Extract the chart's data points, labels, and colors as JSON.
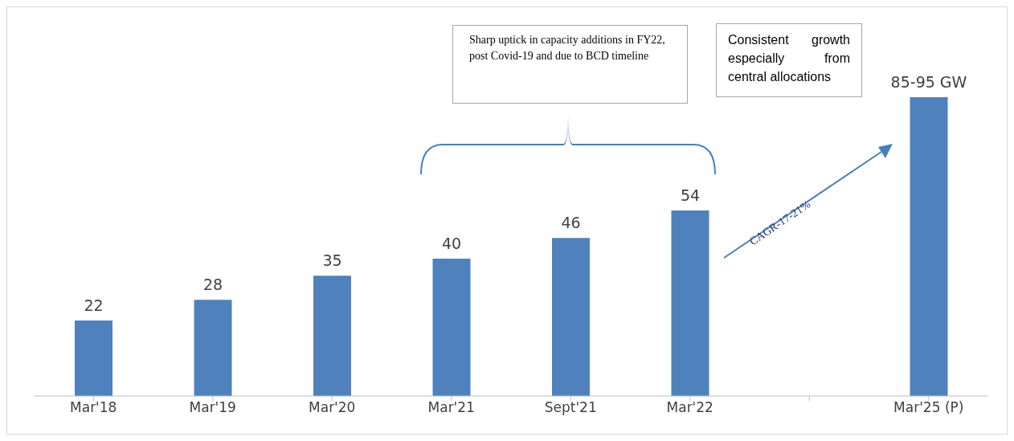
{
  "chart_data": {
    "type": "bar",
    "categories": [
      "Mar'18",
      "Mar'19",
      "Mar'20",
      "Mar'21",
      "Sept'21",
      "Mar'22",
      null,
      "Mar'25 (P)"
    ],
    "values": [
      22,
      28,
      35,
      40,
      46,
      54,
      null,
      87
    ],
    "value_labels": [
      "22",
      "28",
      "35",
      "40",
      "46",
      "54",
      null,
      "85-95 GW"
    ],
    "color": "#4f81bd",
    "annotations": [
      "Sharp uptick in capacity additions in FY22, post Covid-19 and due to BCD timeline",
      "Consistent growth especially from central allocations",
      "CAGR-17-21%"
    ]
  }
}
